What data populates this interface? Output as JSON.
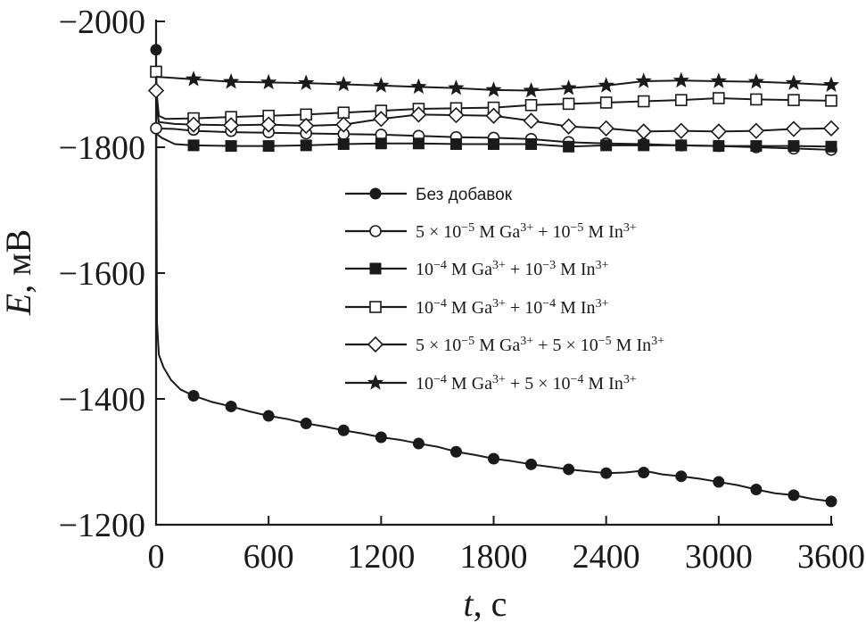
{
  "chart_data": {
    "type": "line",
    "title": "",
    "xlabel": "t, с",
    "xlabel_var": "t",
    "xlabel_unit": ", с",
    "ylabel": "E, мВ",
    "ylabel_var": "E",
    "ylabel_unit": ", мВ",
    "xlim": [
      0,
      3600
    ],
    "ylim": [
      -1200,
      -2000
    ],
    "x_ticks": [
      0,
      600,
      1200,
      1800,
      2400,
      3000,
      3600
    ],
    "y_ticks": [
      -2000,
      -1800,
      -1600,
      -1400,
      -1200
    ],
    "x_tick_labels": [
      "0",
      "600",
      "1200",
      "1800",
      "2400",
      "3000",
      "3600"
    ],
    "y_tick_labels": [
      "−2000",
      "−1800",
      "−1600",
      "−1400",
      "−1200"
    ],
    "grid": false,
    "legend_position": "center-right",
    "colors": {
      "line": "#1a1a1a",
      "background": "#ffffff"
    },
    "series": [
      {
        "name": "Без добавок",
        "marker": "filled-circle",
        "legend": {
          "plain": "Без добавок"
        },
        "curve": [
          [
            0,
            -1960
          ],
          [
            2,
            -1760
          ],
          [
            5,
            -1520
          ],
          [
            15,
            -1470
          ],
          [
            40,
            -1450
          ],
          [
            80,
            -1430
          ],
          [
            130,
            -1415
          ],
          [
            200,
            -1405
          ],
          [
            300,
            -1395
          ],
          [
            400,
            -1388
          ],
          [
            500,
            -1380
          ],
          [
            600,
            -1373
          ],
          [
            700,
            -1368
          ],
          [
            800,
            -1361
          ],
          [
            900,
            -1356
          ],
          [
            1000,
            -1350
          ],
          [
            1100,
            -1345
          ],
          [
            1200,
            -1339
          ],
          [
            1300,
            -1335
          ],
          [
            1400,
            -1329
          ],
          [
            1500,
            -1324
          ],
          [
            1600,
            -1316
          ],
          [
            1700,
            -1311
          ],
          [
            1800,
            -1305
          ],
          [
            1900,
            -1301
          ],
          [
            2000,
            -1296
          ],
          [
            2100,
            -1292
          ],
          [
            2200,
            -1288
          ],
          [
            2300,
            -1285
          ],
          [
            2400,
            -1282
          ],
          [
            2500,
            -1283
          ],
          [
            2600,
            -1286
          ],
          [
            2700,
            -1280
          ],
          [
            2800,
            -1277
          ],
          [
            2900,
            -1273
          ],
          [
            3000,
            -1268
          ],
          [
            3100,
            -1263
          ],
          [
            3200,
            -1256
          ],
          [
            3300,
            -1250
          ],
          [
            3400,
            -1247
          ],
          [
            3500,
            -1241
          ],
          [
            3600,
            -1237
          ]
        ],
        "markers": [
          [
            0,
            -1955
          ],
          [
            200,
            -1405
          ],
          [
            400,
            -1388
          ],
          [
            600,
            -1373
          ],
          [
            800,
            -1361
          ],
          [
            1000,
            -1350
          ],
          [
            1200,
            -1339
          ],
          [
            1400,
            -1329
          ],
          [
            1600,
            -1316
          ],
          [
            1800,
            -1305
          ],
          [
            2000,
            -1296
          ],
          [
            2200,
            -1288
          ],
          [
            2400,
            -1282
          ],
          [
            2600,
            -1283
          ],
          [
            2800,
            -1277
          ],
          [
            3000,
            -1268
          ],
          [
            3200,
            -1256
          ],
          [
            3400,
            -1247
          ],
          [
            3600,
            -1237
          ]
        ]
      },
      {
        "name": "5 × 10−5 M Ga3+ + 10−5 M In3+",
        "marker": "open-circle",
        "legend": {
          "c1": "5 × 10",
          "e1": "−5",
          "m1": " M Ga",
          "s1": "3+",
          "c2": " + 10",
          "e2": "−5",
          "m2": " M In",
          "s2": "3+"
        },
        "curve": [
          [
            0,
            -1830
          ],
          [
            100,
            -1829
          ],
          [
            200,
            -1826
          ],
          [
            400,
            -1824
          ],
          [
            600,
            -1823
          ],
          [
            800,
            -1822
          ],
          [
            1000,
            -1821
          ],
          [
            1200,
            -1820
          ],
          [
            1400,
            -1818
          ],
          [
            1600,
            -1816
          ],
          [
            1800,
            -1815
          ],
          [
            2000,
            -1813
          ],
          [
            2200,
            -1808
          ],
          [
            2400,
            -1806
          ],
          [
            2600,
            -1805
          ],
          [
            2800,
            -1803
          ],
          [
            3000,
            -1802
          ],
          [
            3200,
            -1800
          ],
          [
            3400,
            -1798
          ],
          [
            3600,
            -1796
          ]
        ],
        "markers": [
          [
            0,
            -1830
          ],
          [
            200,
            -1828
          ],
          [
            400,
            -1826
          ],
          [
            600,
            -1824
          ],
          [
            800,
            -1822
          ],
          [
            1000,
            -1821
          ],
          [
            1200,
            -1820
          ],
          [
            1400,
            -1818
          ],
          [
            1600,
            -1816
          ],
          [
            1800,
            -1815
          ],
          [
            2000,
            -1813
          ],
          [
            2200,
            -1808
          ],
          [
            2400,
            -1806
          ],
          [
            2600,
            -1805
          ],
          [
            2800,
            -1803
          ],
          [
            3000,
            -1802
          ],
          [
            3200,
            -1800
          ],
          [
            3400,
            -1798
          ],
          [
            3600,
            -1796
          ]
        ]
      },
      {
        "name": "10−4 M Ga3+ + 10−3 M In3+",
        "marker": "filled-square",
        "legend": {
          "c1": "10",
          "e1": "−4",
          "m1": " M Ga",
          "s1": "3+",
          "c2": " + 10",
          "e2": "−3",
          "m2": " M In",
          "s2": "3+"
        },
        "curve": [
          [
            0,
            -1822
          ],
          [
            30,
            -1815
          ],
          [
            100,
            -1805
          ],
          [
            200,
            -1803
          ],
          [
            400,
            -1802
          ],
          [
            600,
            -1802
          ],
          [
            800,
            -1803
          ],
          [
            1000,
            -1805
          ],
          [
            1200,
            -1806
          ],
          [
            1400,
            -1806
          ],
          [
            1600,
            -1805
          ],
          [
            1800,
            -1805
          ],
          [
            2000,
            -1805
          ],
          [
            2200,
            -1801
          ],
          [
            2400,
            -1803
          ],
          [
            2600,
            -1803
          ],
          [
            2800,
            -1803
          ],
          [
            3000,
            -1802
          ],
          [
            3200,
            -1802
          ],
          [
            3400,
            -1802
          ],
          [
            3600,
            -1801
          ]
        ],
        "markers": [
          [
            200,
            -1803
          ],
          [
            400,
            -1802
          ],
          [
            600,
            -1802
          ],
          [
            800,
            -1803
          ],
          [
            1000,
            -1805
          ],
          [
            1200,
            -1806
          ],
          [
            1400,
            -1806
          ],
          [
            1600,
            -1805
          ],
          [
            1800,
            -1805
          ],
          [
            2000,
            -1805
          ],
          [
            2200,
            -1801
          ],
          [
            2400,
            -1803
          ],
          [
            2600,
            -1803
          ],
          [
            2800,
            -1803
          ],
          [
            3000,
            -1802
          ],
          [
            3200,
            -1802
          ],
          [
            3400,
            -1802
          ],
          [
            3600,
            -1801
          ]
        ]
      },
      {
        "name": "10−4 M Ga3+ + 10−4 M In3+",
        "marker": "open-square",
        "legend": {
          "c1": "10",
          "e1": "−4",
          "m1": " M Ga",
          "s1": "3+",
          "c2": " + 10",
          "e2": "−4",
          "m2": " M In",
          "s2": "3+"
        },
        "curve": [
          [
            0,
            -1920
          ],
          [
            5,
            -1880
          ],
          [
            15,
            -1850
          ],
          [
            50,
            -1845
          ],
          [
            200,
            -1846
          ],
          [
            400,
            -1848
          ],
          [
            600,
            -1850
          ],
          [
            800,
            -1852
          ],
          [
            1000,
            -1855
          ],
          [
            1200,
            -1858
          ],
          [
            1400,
            -1861
          ],
          [
            1600,
            -1862
          ],
          [
            1800,
            -1863
          ],
          [
            2000,
            -1867
          ],
          [
            2200,
            -1869
          ],
          [
            2400,
            -1871
          ],
          [
            2600,
            -1873
          ],
          [
            2800,
            -1875
          ],
          [
            3000,
            -1878
          ],
          [
            3200,
            -1876
          ],
          [
            3400,
            -1875
          ],
          [
            3600,
            -1874
          ]
        ],
        "markers": [
          [
            0,
            -1920
          ],
          [
            200,
            -1846
          ],
          [
            400,
            -1848
          ],
          [
            600,
            -1850
          ],
          [
            800,
            -1852
          ],
          [
            1000,
            -1855
          ],
          [
            1200,
            -1858
          ],
          [
            1400,
            -1861
          ],
          [
            1600,
            -1862
          ],
          [
            1800,
            -1863
          ],
          [
            2000,
            -1867
          ],
          [
            2200,
            -1869
          ],
          [
            2400,
            -1871
          ],
          [
            2600,
            -1873
          ],
          [
            2800,
            -1875
          ],
          [
            3000,
            -1878
          ],
          [
            3200,
            -1876
          ],
          [
            3400,
            -1875
          ],
          [
            3600,
            -1874
          ]
        ]
      },
      {
        "name": "5 × 10−5 M Ga3+ + 5 × 10−5 M In3+",
        "marker": "open-diamond",
        "legend": {
          "c1": "5 × 10",
          "e1": "−5",
          "m1": " M Ga",
          "s1": "3+",
          "c2": " + 5 × 10",
          "e2": "−5",
          "m2": " M In",
          "s2": "3+"
        },
        "curve": [
          [
            0,
            -1890
          ],
          [
            5,
            -1860
          ],
          [
            15,
            -1840
          ],
          [
            100,
            -1837
          ],
          [
            200,
            -1836
          ],
          [
            400,
            -1835
          ],
          [
            600,
            -1836
          ],
          [
            800,
            -1834
          ],
          [
            1000,
            -1836
          ],
          [
            1200,
            -1845
          ],
          [
            1400,
            -1852
          ],
          [
            1600,
            -1851
          ],
          [
            1800,
            -1850
          ],
          [
            2000,
            -1842
          ],
          [
            2200,
            -1833
          ],
          [
            2400,
            -1830
          ],
          [
            2600,
            -1825
          ],
          [
            2800,
            -1826
          ],
          [
            3000,
            -1825
          ],
          [
            3200,
            -1826
          ],
          [
            3400,
            -1829
          ],
          [
            3600,
            -1830
          ]
        ],
        "markers": [
          [
            0,
            -1890
          ],
          [
            200,
            -1836
          ],
          [
            400,
            -1835
          ],
          [
            600,
            -1836
          ],
          [
            800,
            -1834
          ],
          [
            1000,
            -1836
          ],
          [
            1200,
            -1845
          ],
          [
            1400,
            -1852
          ],
          [
            1600,
            -1851
          ],
          [
            1800,
            -1850
          ],
          [
            2000,
            -1842
          ],
          [
            2200,
            -1833
          ],
          [
            2400,
            -1830
          ],
          [
            2600,
            -1825
          ],
          [
            2800,
            -1826
          ],
          [
            3000,
            -1825
          ],
          [
            3200,
            -1826
          ],
          [
            3400,
            -1829
          ],
          [
            3600,
            -1830
          ]
        ]
      },
      {
        "name": "10−4 M Ga3+ + 5 × 10−4 M In3+",
        "marker": "filled-star",
        "legend": {
          "c1": "10",
          "e1": "−4",
          "m1": " M Ga",
          "s1": "3+",
          "c2": " + 5 × 10",
          "e2": "−4",
          "m2": " M In",
          "s2": "3+"
        },
        "curve": [
          [
            0,
            -1912
          ],
          [
            200,
            -1908
          ],
          [
            400,
            -1904
          ],
          [
            600,
            -1903
          ],
          [
            800,
            -1902
          ],
          [
            1000,
            -1900
          ],
          [
            1200,
            -1898
          ],
          [
            1400,
            -1896
          ],
          [
            1600,
            -1894
          ],
          [
            1800,
            -1891
          ],
          [
            2000,
            -1890
          ],
          [
            2200,
            -1894
          ],
          [
            2400,
            -1898
          ],
          [
            2600,
            -1905
          ],
          [
            2800,
            -1906
          ],
          [
            3000,
            -1905
          ],
          [
            3200,
            -1904
          ],
          [
            3400,
            -1902
          ],
          [
            3600,
            -1899
          ]
        ],
        "markers": [
          [
            200,
            -1908
          ],
          [
            400,
            -1904
          ],
          [
            600,
            -1903
          ],
          [
            800,
            -1902
          ],
          [
            1000,
            -1900
          ],
          [
            1200,
            -1898
          ],
          [
            1400,
            -1896
          ],
          [
            1600,
            -1894
          ],
          [
            1800,
            -1891
          ],
          [
            2000,
            -1890
          ],
          [
            2200,
            -1894
          ],
          [
            2400,
            -1898
          ],
          [
            2600,
            -1905
          ],
          [
            2800,
            -1906
          ],
          [
            3000,
            -1905
          ],
          [
            3200,
            -1904
          ],
          [
            3400,
            -1902
          ],
          [
            3600,
            -1899
          ]
        ]
      }
    ]
  }
}
